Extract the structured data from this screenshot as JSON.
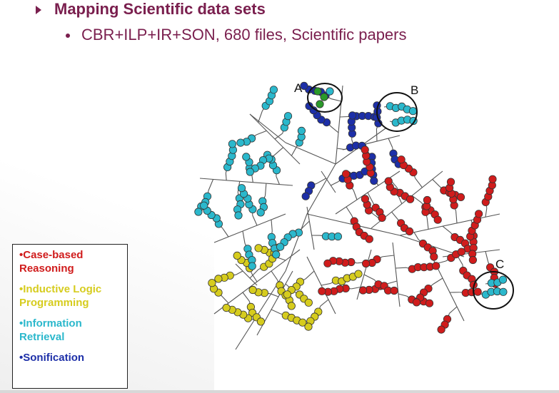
{
  "slide": {
    "title": "Mapping Scientific data sets",
    "bullet": "CBR+ILP+IR+SON, 680 files, Scientific papers"
  },
  "colors": {
    "accent": "#7a1f4e",
    "case_based": "#d01c1c",
    "inductive": "#d6cc1e",
    "information": "#2bb8cc",
    "sonification": "#1d2fa8"
  },
  "legend": {
    "items": [
      {
        "label": "•Case-based Reasoning",
        "color": "#d01c1c"
      },
      {
        "label": "•Inductive Logic Programming",
        "color": "#d6cc1e"
      },
      {
        "label": "•Information Retrieval",
        "color": "#2bb8cc"
      },
      {
        "label": "•Sonification",
        "color": "#1d2fa8"
      }
    ]
  },
  "callouts": {
    "a": "A",
    "b": "B",
    "c": "C"
  }
}
